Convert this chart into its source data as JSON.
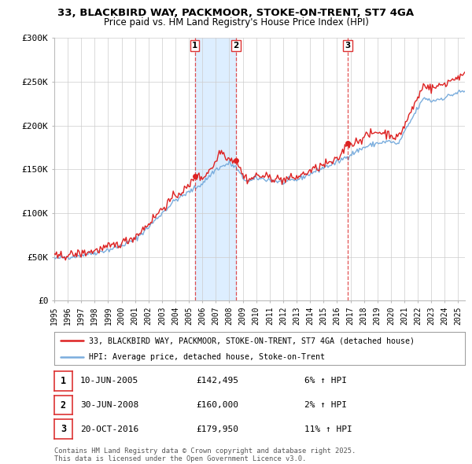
{
  "title1": "33, BLACKBIRD WAY, PACKMOOR, STOKE-ON-TRENT, ST7 4GA",
  "title2": "Price paid vs. HM Land Registry's House Price Index (HPI)",
  "background_color": "#ffffff",
  "plot_bg_color": "#ffffff",
  "grid_color": "#cccccc",
  "shade_color": "#ddeeff",
  "red_line_color": "#dd2222",
  "blue_line_color": "#7aaddd",
  "vline_color": "#dd3333",
  "sale_dates_float": [
    2005.44,
    2008.49,
    2016.8
  ],
  "sale_prices": [
    142495,
    160000,
    179950
  ],
  "sale_labels": [
    "1",
    "2",
    "3"
  ],
  "sale_hpi_pct": [
    "6%",
    "2%",
    "11%"
  ],
  "sale_date_labels": [
    "10-JUN-2005",
    "30-JUN-2008",
    "20-OCT-2016"
  ],
  "sale_price_labels": [
    "£142,495",
    "£160,000",
    "£179,950"
  ],
  "legend_line1": "33, BLACKBIRD WAY, PACKMOOR, STOKE-ON-TRENT, ST7 4GA (detached house)",
  "legend_line2": "HPI: Average price, detached house, Stoke-on-Trent",
  "footer": "Contains HM Land Registry data © Crown copyright and database right 2025.\nThis data is licensed under the Open Government Licence v3.0.",
  "ylim": [
    0,
    300000
  ],
  "yticks": [
    0,
    50000,
    100000,
    150000,
    200000,
    250000,
    300000
  ],
  "ytick_labels": [
    "£0",
    "£50K",
    "£100K",
    "£150K",
    "£200K",
    "£250K",
    "£300K"
  ],
  "xstart_year": 1995,
  "xend_year": 2025
}
